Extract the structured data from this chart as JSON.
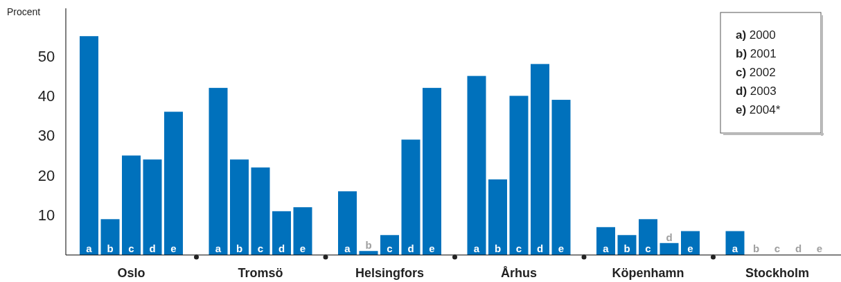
{
  "chart_data": {
    "type": "bar",
    "ylabel": "Procent",
    "categories": [
      "Oslo",
      "Tromsö",
      "Helsingfors",
      "Århus",
      "Köpenhamn",
      "Stockholm"
    ],
    "series": [
      {
        "name": "a",
        "color": "#0071bc",
        "values": [
          55,
          42,
          16,
          45,
          7,
          6
        ]
      },
      {
        "name": "b",
        "color": "#0071bc",
        "values": [
          9,
          24,
          1,
          19,
          5,
          null
        ]
      },
      {
        "name": "c",
        "color": "#0071bc",
        "values": [
          25,
          22,
          5,
          40,
          9,
          null
        ]
      },
      {
        "name": "d",
        "color": "#0071bc",
        "values": [
          24,
          11,
          29,
          48,
          3,
          null
        ]
      },
      {
        "name": "e",
        "color": "#0071bc",
        "values": [
          36,
          12,
          42,
          39,
          6,
          null
        ]
      }
    ],
    "ylim": [
      0,
      62
    ],
    "yticks": [
      10,
      20,
      30,
      40,
      50
    ],
    "grid": false,
    "annotations": [
      "a) 2000",
      "b) 2001",
      "c) 2002",
      "d) 2003",
      "e) 2004*"
    ]
  }
}
